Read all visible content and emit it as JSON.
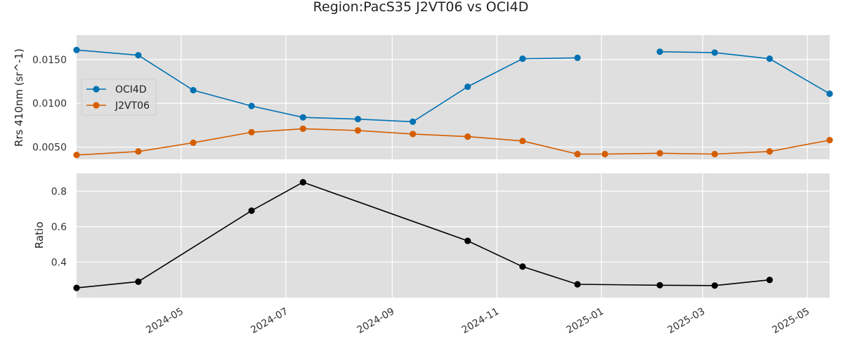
{
  "chart_data": [
    {
      "type": "line",
      "title": "Region:PacS35 J2VT06 vs OCI4D",
      "ylabel": "Rrs 410nm (sr^-1)",
      "xlim": [
        "2024-03-01",
        "2025-05-14"
      ],
      "ylim": [
        0.0036,
        0.0178
      ],
      "yticks": [
        0.005,
        0.01,
        0.015
      ],
      "ytick_labels": [
        "0.0050",
        "0.0100",
        "0.0150"
      ],
      "legend": "center-left",
      "grid": true,
      "series": [
        {
          "name": "OCI4D",
          "color": "#0072b2",
          "points": [
            [
              "2024-03-01",
              0.0161
            ],
            [
              "2024-04-06",
              0.0155
            ],
            [
              "2024-05-08",
              0.0115
            ],
            [
              "2024-06-11",
              0.0097
            ],
            [
              "2024-07-11",
              0.0084
            ],
            [
              "2024-08-12",
              0.0082
            ],
            [
              "2024-09-13",
              0.0079
            ],
            [
              "2024-10-15",
              0.0119
            ],
            [
              "2024-11-16",
              0.0151
            ],
            [
              "2024-12-18",
              0.0152
            ],
            null,
            [
              "2025-02-04",
              0.0159
            ],
            [
              "2025-03-08",
              0.0158
            ],
            [
              "2025-04-09",
              0.0151
            ],
            [
              "2025-05-14",
              0.0111
            ]
          ]
        },
        {
          "name": "J2VT06",
          "color": "#d55e00",
          "points": [
            [
              "2024-03-01",
              0.0041
            ],
            [
              "2024-04-06",
              0.0045
            ],
            [
              "2024-05-08",
              0.0055
            ],
            [
              "2024-06-11",
              0.0067
            ],
            [
              "2024-07-11",
              0.0071
            ],
            [
              "2024-08-12",
              0.0069
            ],
            [
              "2024-09-13",
              0.0065
            ],
            [
              "2024-10-15",
              0.0062
            ],
            [
              "2024-11-16",
              0.0057
            ],
            [
              "2024-12-18",
              0.0042
            ],
            [
              "2025-01-03",
              0.0042
            ],
            [
              "2025-02-04",
              0.0043
            ],
            [
              "2025-03-08",
              0.0042
            ],
            [
              "2025-04-09",
              0.0045
            ],
            [
              "2025-05-14",
              0.0058
            ]
          ]
        }
      ]
    },
    {
      "type": "line",
      "ylabel": "Ratio",
      "xlim": [
        "2024-03-01",
        "2025-05-14"
      ],
      "ylim": [
        0.2,
        0.9
      ],
      "yticks": [
        0.4,
        0.6,
        0.8
      ],
      "ytick_labels": [
        "0.4",
        "0.6",
        "0.8"
      ],
      "grid": true,
      "xticks": [
        "2024-05-01",
        "2024-07-01",
        "2024-09-01",
        "2024-11-01",
        "2025-01-01",
        "2025-03-01",
        "2025-05-01"
      ],
      "xtick_labels": [
        "2024-05",
        "2024-07",
        "2024-09",
        "2024-11",
        "2025-01",
        "2025-03",
        "2025-05"
      ],
      "series": [
        {
          "color": "#000000",
          "points": [
            [
              "2024-03-01",
              0.255
            ],
            [
              "2024-04-06",
              0.29
            ],
            [
              "2024-06-11",
              0.69
            ],
            [
              "2024-07-11",
              0.85
            ],
            [
              "2024-10-15",
              0.52
            ],
            [
              "2024-11-16",
              0.375
            ],
            [
              "2024-12-18",
              0.275
            ],
            [
              "2025-02-04",
              0.27
            ],
            [
              "2025-03-08",
              0.268
            ],
            [
              "2025-04-09",
              0.3
            ]
          ]
        }
      ]
    }
  ]
}
